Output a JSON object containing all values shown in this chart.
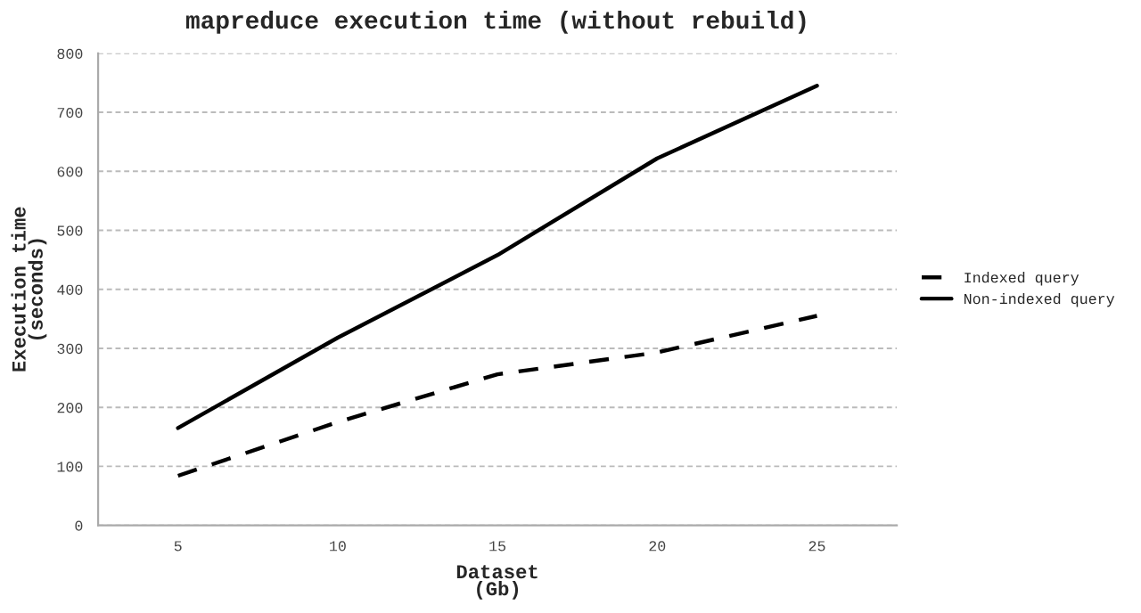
{
  "chart_data": {
    "type": "line",
    "title": "mapreduce execution time (without rebuild)",
    "xlabel": "Dataset\n(Gb)",
    "ylabel": "Execution time\n(seconds)",
    "x": [
      5,
      10,
      15,
      20,
      25
    ],
    "series": [
      {
        "name": "Indexed query",
        "color": "#000000",
        "line_style": "dashed",
        "values": [
          84,
          175,
          256,
          293,
          355
        ]
      },
      {
        "name": "Non-indexed query",
        "color": "#000000",
        "line_style": "solid",
        "values": [
          165,
          318,
          458,
          622,
          745
        ]
      }
    ],
    "xlim": [
      2.5,
      27.5
    ],
    "xticks": [
      5,
      10,
      15,
      20,
      25
    ],
    "ylim": [
      0,
      800
    ],
    "yticks": [
      0,
      100,
      200,
      300,
      400,
      500,
      600,
      700,
      800
    ],
    "grid": "y",
    "legend": "right",
    "marker": "none"
  }
}
